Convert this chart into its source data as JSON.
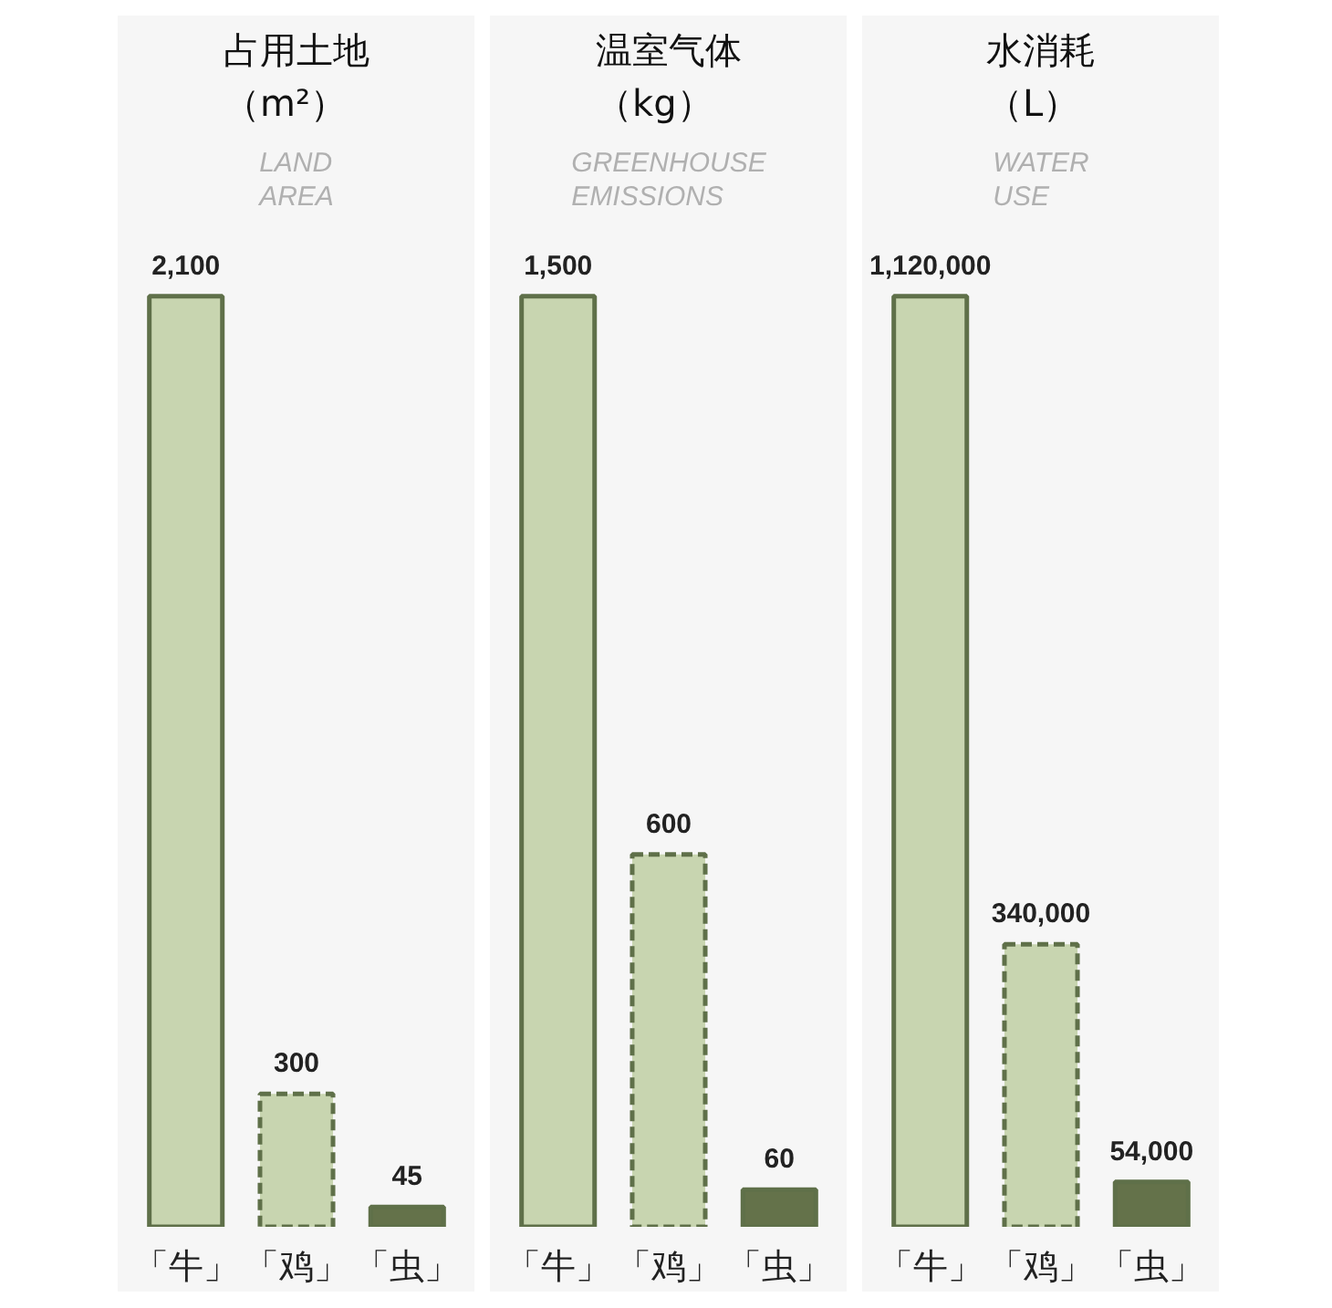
{
  "chart_data": [
    {
      "type": "bar",
      "title": "占用土地（m²）",
      "subtitle": "LAND\nAREA",
      "categories": [
        "「牛」",
        "「鸡」",
        "「虫」"
      ],
      "series": [
        {
          "color": "#c8d5b0",
          "line_style": "solid",
          "values": [
            2100,
            null,
            null
          ],
          "value_labels": [
            "2,100",
            null,
            null
          ]
        },
        {
          "color": "#c8d5b0",
          "line_style": "dashed",
          "values": [
            null,
            300,
            null
          ],
          "value_labels": [
            null,
            "300",
            null
          ]
        },
        {
          "color": "#64724a",
          "line_style": "solid",
          "values": [
            null,
            null,
            45
          ],
          "value_labels": [
            null,
            null,
            "45"
          ]
        }
      ]
    },
    {
      "type": "bar",
      "title": "温室气体（kg）",
      "subtitle": "GREENHOUSE\nEMISSIONS",
      "categories": [
        "「牛」",
        "「鸡」",
        "「虫」"
      ],
      "series": [
        {
          "color": "#c8d5b0",
          "line_style": "solid",
          "values": [
            1500,
            null,
            null
          ],
          "value_labels": [
            "1,500",
            null,
            null
          ]
        },
        {
          "color": "#c8d5b0",
          "line_style": "dashed",
          "values": [
            null,
            600,
            null
          ],
          "value_labels": [
            null,
            "600",
            null
          ]
        },
        {
          "color": "#64724a",
          "line_style": "solid",
          "values": [
            null,
            null,
            60
          ],
          "value_labels": [
            null,
            null,
            "60"
          ]
        }
      ]
    },
    {
      "type": "bar",
      "title": "水消耗（L）",
      "subtitle": "WATER\nUSE",
      "categories": [
        "「牛」",
        "「鸡」",
        "「虫」"
      ],
      "series": [
        {
          "color": "#c8d5b0",
          "line_style": "solid",
          "values": [
            1120000,
            null,
            null
          ],
          "value_labels": [
            "1,120,000",
            null,
            null
          ]
        },
        {
          "color": "#c8d5b0",
          "line_style": "dashed",
          "values": [
            null,
            340000,
            null
          ],
          "value_labels": [
            null,
            "340,000",
            null
          ]
        },
        {
          "color": "#64724a",
          "line_style": "solid",
          "values": [
            null,
            null,
            54000
          ],
          "value_labels": [
            null,
            null,
            "54,000"
          ]
        }
      ]
    }
  ]
}
